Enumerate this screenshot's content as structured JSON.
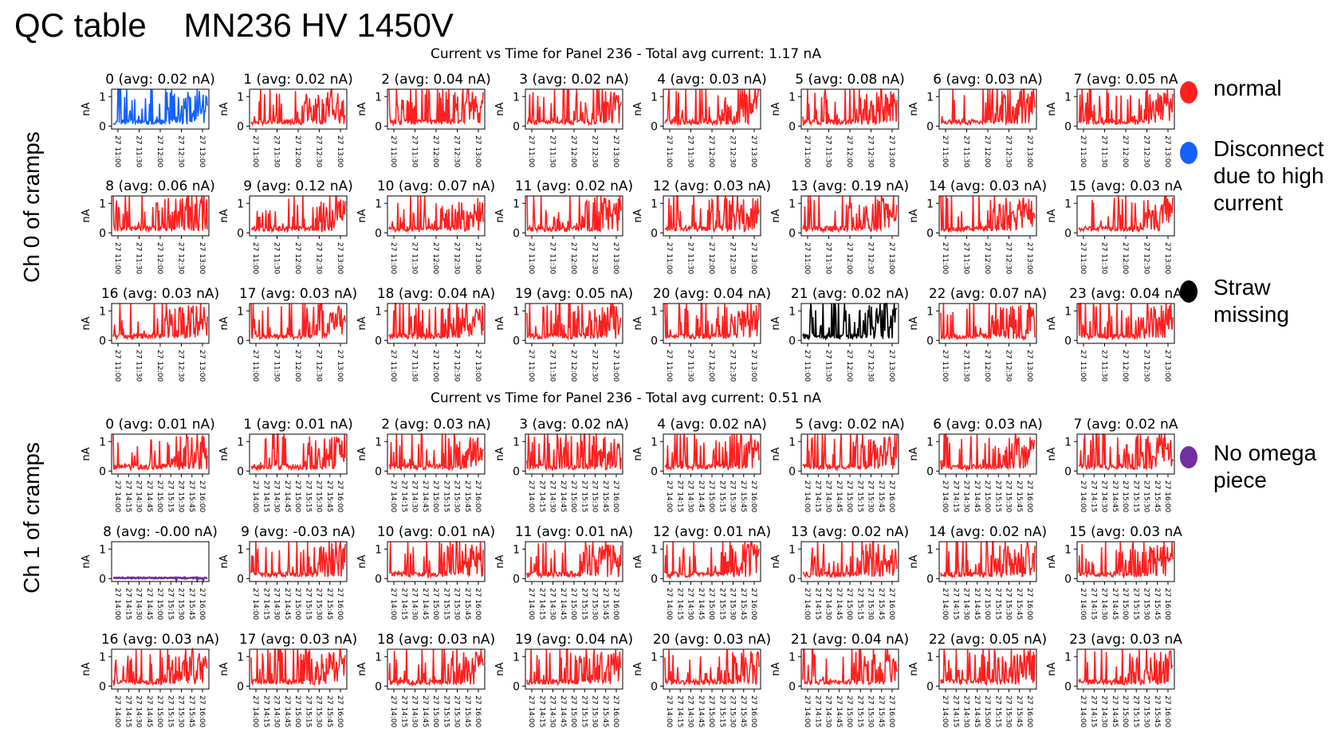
{
  "page": {
    "title": "QC table    MN236 HV 1450V"
  },
  "legend": [
    {
      "label": "normal",
      "color": "#ff2020",
      "icon": "red-dot"
    },
    {
      "label": "Disconnect due to high current",
      "color": "#1560ff",
      "icon": "blue-dot"
    },
    {
      "label": "Straw missing",
      "color": "#000000",
      "icon": "black-dot"
    },
    {
      "label": "No omega piece",
      "color": "#7030a0",
      "icon": "purple-dot"
    }
  ],
  "sections": [
    {
      "side_label": "Ch 0 of cramps",
      "suptitle": "Current vs Time for Panel 236 - Total avg current: 1.17 nA"
    },
    {
      "side_label": "Ch 1 of cramps",
      "suptitle": "Current vs Time for Panel 236 - Total avg current: 0.51 nA"
    }
  ],
  "chart_data": [
    {
      "type": "line",
      "suptitle": "Current vs Time for Panel 236 - Total avg current: 1.17 nA",
      "ylabel": "nA",
      "yticks": [
        "0",
        "1"
      ],
      "ylim": [
        -0.1,
        1.25
      ],
      "xtick_labels": [
        "27 11:00",
        "27 11:30",
        "27 12:00",
        "27 12:30",
        "27 13:00"
      ],
      "channels": [
        {
          "title": "0 (avg: 0.02 nA)",
          "color": "#1560ff",
          "status": "disconnect"
        },
        {
          "title": "1 (avg: 0.02 nA)",
          "color": "#ff2020",
          "status": "normal"
        },
        {
          "title": "2 (avg: 0.04 nA)",
          "color": "#ff2020",
          "status": "normal"
        },
        {
          "title": "3 (avg: 0.02 nA)",
          "color": "#ff2020",
          "status": "normal"
        },
        {
          "title": "4 (avg: 0.03 nA)",
          "color": "#ff2020",
          "status": "normal"
        },
        {
          "title": "5 (avg: 0.08 nA)",
          "color": "#ff2020",
          "status": "normal"
        },
        {
          "title": "6 (avg: 0.03 nA)",
          "color": "#ff2020",
          "status": "normal"
        },
        {
          "title": "7 (avg: 0.05 nA",
          "color": "#ff2020",
          "status": "normal"
        },
        {
          "title": "8 (avg: 0.06 nA)",
          "color": "#ff2020",
          "status": "normal"
        },
        {
          "title": "9 (avg: 0.12 nA)",
          "color": "#ff2020",
          "status": "normal"
        },
        {
          "title": "10 (avg: 0.07 nA)",
          "color": "#ff2020",
          "status": "normal"
        },
        {
          "title": "11 (avg: 0.02 nA)",
          "color": "#ff2020",
          "status": "normal"
        },
        {
          "title": "12 (avg: 0.03 nA)",
          "color": "#ff2020",
          "status": "normal"
        },
        {
          "title": "13 (avg: 0.19 nA)",
          "color": "#ff2020",
          "status": "normal"
        },
        {
          "title": "14 (avg: 0.03 nA)",
          "color": "#ff2020",
          "status": "normal"
        },
        {
          "title": "15 (avg: 0.03 nA",
          "color": "#ff2020",
          "status": "normal"
        },
        {
          "title": "16 (avg: 0.03 nA)",
          "color": "#ff2020",
          "status": "normal"
        },
        {
          "title": "17 (avg: 0.03 nA)",
          "color": "#ff2020",
          "status": "normal"
        },
        {
          "title": "18 (avg: 0.04 nA)",
          "color": "#ff2020",
          "status": "normal"
        },
        {
          "title": "19 (avg: 0.05 nA)",
          "color": "#ff2020",
          "status": "normal"
        },
        {
          "title": "20 (avg: 0.04 nA)",
          "color": "#ff2020",
          "status": "normal"
        },
        {
          "title": "21 (avg: 0.02 nA)",
          "color": "#000000",
          "status": "straw-missing"
        },
        {
          "title": "22 (avg: 0.07 nA)",
          "color": "#ff2020",
          "status": "normal"
        },
        {
          "title": "23 (avg: 0.04 nA",
          "color": "#ff2020",
          "status": "normal"
        }
      ]
    },
    {
      "type": "line",
      "suptitle": "Current vs Time for Panel 236 - Total avg current: 0.51 nA",
      "ylabel": "nA",
      "yticks": [
        "0",
        "1"
      ],
      "ylim": [
        -0.1,
        1.25
      ],
      "xtick_labels": [
        "27 14:00",
        "27 14:15",
        "27 14:30",
        "27 14:45",
        "27 15:00",
        "27 15:15",
        "27 15:30",
        "27 15:45",
        "27 16:00"
      ],
      "channels": [
        {
          "title": "0 (avg: 0.01 nA)",
          "color": "#ff2020",
          "status": "normal"
        },
        {
          "title": "1 (avg: 0.01 nA)",
          "color": "#ff2020",
          "status": "normal"
        },
        {
          "title": "2 (avg: 0.03 nA)",
          "color": "#ff2020",
          "status": "normal"
        },
        {
          "title": "3 (avg: 0.02 nA)",
          "color": "#ff2020",
          "status": "normal"
        },
        {
          "title": "4 (avg: 0.02 nA)",
          "color": "#ff2020",
          "status": "normal"
        },
        {
          "title": "5 (avg: 0.02 nA)",
          "color": "#ff2020",
          "status": "normal"
        },
        {
          "title": "6 (avg: 0.03 nA)",
          "color": "#ff2020",
          "status": "normal"
        },
        {
          "title": "7 (avg: 0.02 nA",
          "color": "#ff2020",
          "status": "normal"
        },
        {
          "title": "8 (avg: -0.00 nA)",
          "color": "#7030a0",
          "status": "no-omega"
        },
        {
          "title": "9 (avg: -0.03 nA)",
          "color": "#ff2020",
          "status": "normal"
        },
        {
          "title": "10 (avg: 0.01 nA)",
          "color": "#ff2020",
          "status": "normal"
        },
        {
          "title": "11 (avg: 0.01 nA)",
          "color": "#ff2020",
          "status": "normal"
        },
        {
          "title": "12 (avg: 0.01 nA)",
          "color": "#ff2020",
          "status": "normal"
        },
        {
          "title": "13 (avg: 0.02 nA)",
          "color": "#ff2020",
          "status": "normal"
        },
        {
          "title": "14 (avg: 0.02 nA)",
          "color": "#ff2020",
          "status": "normal"
        },
        {
          "title": "15 (avg: 0.03 nA",
          "color": "#ff2020",
          "status": "normal"
        },
        {
          "title": "16 (avg: 0.03 nA)",
          "color": "#ff2020",
          "status": "normal"
        },
        {
          "title": "17 (avg: 0.03 nA)",
          "color": "#ff2020",
          "status": "normal"
        },
        {
          "title": "18 (avg: 0.03 nA)",
          "color": "#ff2020",
          "status": "normal"
        },
        {
          "title": "19 (avg: 0.04 nA)",
          "color": "#ff2020",
          "status": "normal"
        },
        {
          "title": "20 (avg: 0.03 nA)",
          "color": "#ff2020",
          "status": "normal"
        },
        {
          "title": "21 (avg: 0.04 nA)",
          "color": "#ff2020",
          "status": "normal"
        },
        {
          "title": "22 (avg: 0.05 nA)",
          "color": "#ff2020",
          "status": "normal"
        },
        {
          "title": "23 (avg: 0.03 nA",
          "color": "#ff2020",
          "status": "normal"
        }
      ]
    }
  ]
}
